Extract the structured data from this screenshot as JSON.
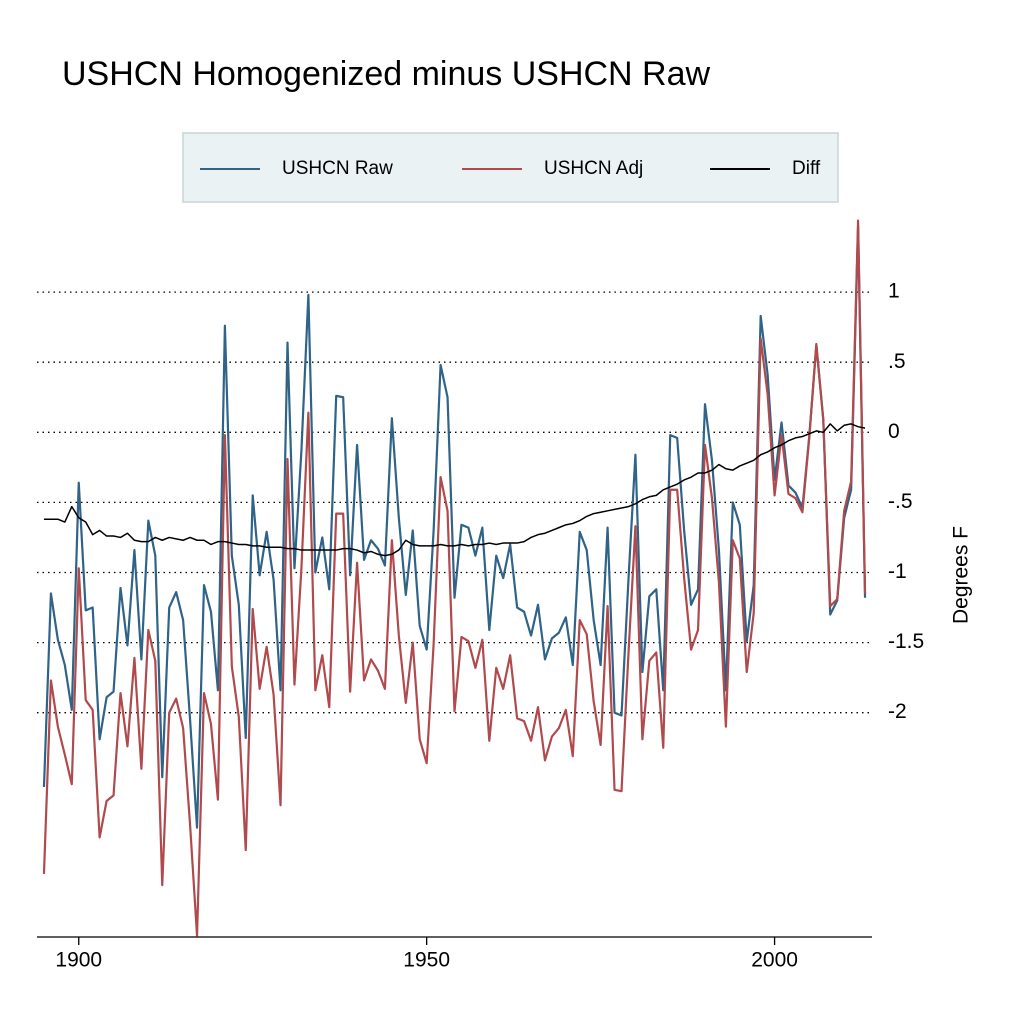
{
  "chart_data": {
    "type": "line",
    "title": "USHCN Homogenized minus USHCN Raw",
    "y_label": "Degrees F",
    "x": [
      1895,
      1896,
      1897,
      1898,
      1899,
      1900,
      1901,
      1902,
      1903,
      1904,
      1905,
      1906,
      1907,
      1908,
      1909,
      1910,
      1911,
      1912,
      1913,
      1914,
      1915,
      1916,
      1917,
      1918,
      1919,
      1920,
      1921,
      1922,
      1923,
      1924,
      1925,
      1926,
      1927,
      1928,
      1929,
      1930,
      1931,
      1932,
      1933,
      1934,
      1935,
      1936,
      1937,
      1938,
      1939,
      1940,
      1941,
      1942,
      1943,
      1944,
      1945,
      1946,
      1947,
      1948,
      1949,
      1950,
      1951,
      1952,
      1953,
      1954,
      1955,
      1956,
      1957,
      1958,
      1959,
      1960,
      1961,
      1962,
      1963,
      1964,
      1965,
      1966,
      1967,
      1968,
      1969,
      1970,
      1971,
      1972,
      1973,
      1974,
      1975,
      1976,
      1977,
      1978,
      1979,
      1980,
      1981,
      1982,
      1983,
      1984,
      1985,
      1986,
      1987,
      1988,
      1989,
      1990,
      1991,
      1992,
      1993,
      1994,
      1995,
      1996,
      1997,
      1998,
      1999,
      2000,
      2001,
      2002,
      2003,
      2004,
      2005,
      2006,
      2007,
      2008,
      2009,
      2010,
      2011,
      2012,
      2013
    ],
    "series": [
      {
        "name": "USHCN Raw",
        "color": "#2f6388",
        "values": [
          -2.53,
          -1.15,
          -1.48,
          -1.66,
          -1.98,
          -0.36,
          -1.27,
          -1.25,
          -2.19,
          -1.89,
          -1.85,
          -1.11,
          -1.52,
          -0.84,
          -1.62,
          -0.63,
          -0.88,
          -2.46,
          -1.25,
          -1.14,
          -1.34,
          -2.05,
          -2.82,
          -1.09,
          -1.28,
          -1.84,
          0.76,
          -0.88,
          -1.23,
          -2.18,
          -0.45,
          -1.02,
          -0.71,
          -1.05,
          -1.84,
          0.64,
          -0.97,
          -0.13,
          0.98,
          -1.0,
          -0.75,
          -1.12,
          0.26,
          0.25,
          -1.02,
          -0.09,
          -0.91,
          -0.77,
          -0.83,
          -0.95,
          0.1,
          -0.61,
          -1.16,
          -0.7,
          -1.38,
          -1.55,
          -0.7,
          0.48,
          0.25,
          -1.18,
          -0.66,
          -0.68,
          -0.88,
          -0.68,
          -1.41,
          -0.88,
          -1.04,
          -0.8,
          -1.25,
          -1.28,
          -1.45,
          -1.23,
          -1.62,
          -1.47,
          -1.43,
          -1.32,
          -1.66,
          -0.71,
          -0.84,
          -1.34,
          -1.66,
          -0.68,
          -2.0,
          -2.02,
          -1.05,
          -0.16,
          -1.71,
          -1.17,
          -1.12,
          -1.84,
          -0.02,
          -0.04,
          -0.7,
          -1.23,
          -1.12,
          0.2,
          -0.2,
          -0.84,
          -1.84,
          -0.5,
          -0.66,
          -1.49,
          -1.09,
          0.83,
          0.41,
          -0.34,
          0.07,
          -0.38,
          -0.43,
          -0.54,
          -0.02,
          0.62,
          0.09,
          -1.3,
          -1.2,
          -0.61,
          -0.41,
          1.47,
          -1.18
        ]
      },
      {
        "name": "USHCN Adj",
        "color": "#b04a4c",
        "values": [
          -3.15,
          -1.77,
          -2.1,
          -2.3,
          -2.51,
          -0.97,
          -1.91,
          -1.98,
          -2.89,
          -2.63,
          -2.59,
          -1.86,
          -2.24,
          -1.61,
          -2.4,
          -1.41,
          -1.63,
          -3.23,
          -2.0,
          -1.9,
          -2.11,
          -2.8,
          -3.59,
          -1.86,
          -2.08,
          -2.62,
          -0.02,
          -1.67,
          -2.03,
          -2.98,
          -1.26,
          -1.83,
          -1.53,
          -1.87,
          -2.66,
          -0.19,
          -1.8,
          -0.97,
          0.14,
          -1.84,
          -1.59,
          -1.96,
          -0.58,
          -0.58,
          -1.85,
          -0.93,
          -1.77,
          -1.62,
          -1.7,
          -1.83,
          -0.77,
          -1.45,
          -1.93,
          -1.5,
          -2.19,
          -2.36,
          -1.51,
          -0.32,
          -0.56,
          -1.99,
          -1.46,
          -1.49,
          -1.68,
          -1.48,
          -2.2,
          -1.68,
          -1.83,
          -1.59,
          -2.04,
          -2.06,
          -2.2,
          -1.96,
          -2.34,
          -2.17,
          -2.11,
          -1.98,
          -2.31,
          -1.34,
          -1.44,
          -1.92,
          -2.23,
          -1.24,
          -2.55,
          -2.56,
          -1.58,
          -0.67,
          -2.19,
          -1.63,
          -1.57,
          -2.25,
          -0.41,
          -0.41,
          -1.04,
          -1.55,
          -1.41,
          -0.09,
          -0.47,
          -1.07,
          -2.1,
          -0.77,
          -0.9,
          -1.71,
          -1.29,
          0.67,
          0.27,
          -0.45,
          -0.02,
          -0.44,
          -0.47,
          -0.57,
          -0.03,
          0.63,
          0.09,
          -1.24,
          -1.19,
          -0.56,
          -0.35,
          1.51,
          -1.15
        ]
      },
      {
        "name": "Diff",
        "color": "#000000",
        "values": [
          -0.62,
          -0.62,
          -0.62,
          -0.64,
          -0.53,
          -0.61,
          -0.64,
          -0.73,
          -0.7,
          -0.74,
          -0.74,
          -0.75,
          -0.72,
          -0.77,
          -0.78,
          -0.78,
          -0.75,
          -0.77,
          -0.75,
          -0.76,
          -0.77,
          -0.75,
          -0.77,
          -0.77,
          -0.8,
          -0.78,
          -0.78,
          -0.79,
          -0.8,
          -0.8,
          -0.81,
          -0.81,
          -0.82,
          -0.82,
          -0.82,
          -0.83,
          -0.83,
          -0.84,
          -0.84,
          -0.84,
          -0.84,
          -0.84,
          -0.84,
          -0.83,
          -0.83,
          -0.84,
          -0.86,
          -0.85,
          -0.87,
          -0.88,
          -0.87,
          -0.84,
          -0.77,
          -0.8,
          -0.81,
          -0.81,
          -0.81,
          -0.8,
          -0.81,
          -0.81,
          -0.8,
          -0.81,
          -0.8,
          -0.8,
          -0.79,
          -0.8,
          -0.79,
          -0.79,
          -0.79,
          -0.78,
          -0.75,
          -0.73,
          -0.72,
          -0.7,
          -0.68,
          -0.66,
          -0.65,
          -0.63,
          -0.6,
          -0.58,
          -0.57,
          -0.56,
          -0.55,
          -0.54,
          -0.53,
          -0.51,
          -0.48,
          -0.46,
          -0.45,
          -0.41,
          -0.39,
          -0.37,
          -0.34,
          -0.32,
          -0.29,
          -0.29,
          -0.27,
          -0.23,
          -0.26,
          -0.27,
          -0.24,
          -0.22,
          -0.2,
          -0.16,
          -0.14,
          -0.11,
          -0.09,
          -0.06,
          -0.04,
          -0.03,
          -0.01,
          0.01,
          0.0,
          0.06,
          0.01,
          0.05,
          0.06,
          0.04,
          0.03
        ]
      }
    ],
    "xlim": [
      1894,
      2014
    ],
    "xticks": [
      1900,
      1950,
      2000
    ],
    "ylim": [
      -3.6,
      1.55
    ],
    "yticks": [
      {
        "value": -2,
        "label": "-2"
      },
      {
        "value": -1.5,
        "label": "-1.5"
      },
      -1,
      {
        "value": -0.5,
        "label": "-.5"
      },
      0,
      {
        "value": 0.5,
        "label": ".5"
      },
      1
    ],
    "grid": true,
    "legend": "top"
  }
}
